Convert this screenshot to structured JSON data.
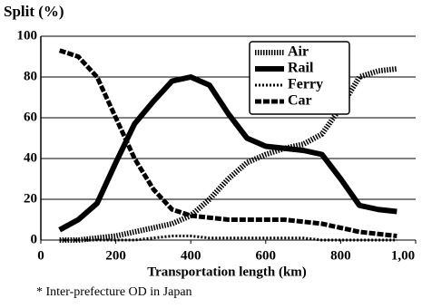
{
  "chart_data": {
    "type": "line",
    "ylabel": "Split (%)",
    "xlabel": "Transportation length (km)",
    "note": "* Inter-prefecture OD in Japan",
    "xlim": [
      0,
      1000
    ],
    "ylim": [
      0,
      100
    ],
    "xticks": [
      0,
      200,
      400,
      600,
      800,
      {
        "value": 1000,
        "label": "1,00"
      }
    ],
    "yticks": [
      0,
      20,
      40,
      60,
      80,
      100
    ],
    "grid": true,
    "legend": "top-right",
    "x": [
      50,
      100,
      150,
      200,
      250,
      300,
      350,
      400,
      450,
      500,
      550,
      600,
      650,
      700,
      750,
      800,
      850,
      900,
      950
    ],
    "series": [
      {
        "name": "Air",
        "color": "#000000",
        "style": "hatched",
        "values": [
          0,
          0,
          1,
          2,
          4,
          6,
          8,
          12,
          20,
          30,
          38,
          42,
          45,
          47,
          52,
          65,
          80,
          83,
          84
        ]
      },
      {
        "name": "Rail",
        "color": "#000000",
        "style": "solid",
        "values": [
          5,
          10,
          18,
          38,
          57,
          68,
          78,
          80,
          76,
          62,
          50,
          46,
          45,
          44,
          42,
          30,
          17,
          15,
          14
        ]
      },
      {
        "name": "Ferry",
        "color": "#000000",
        "style": "dotted",
        "values": [
          0,
          0,
          0,
          0,
          0,
          1,
          2,
          2,
          1,
          1,
          1,
          1,
          1,
          1,
          0,
          0,
          0,
          0,
          0
        ]
      },
      {
        "name": "Car",
        "color": "#000000",
        "style": "dashed",
        "values": [
          93,
          90,
          80,
          60,
          40,
          25,
          15,
          12,
          11,
          10,
          10,
          10,
          10,
          9,
          8,
          6,
          4,
          3,
          2
        ]
      }
    ]
  }
}
